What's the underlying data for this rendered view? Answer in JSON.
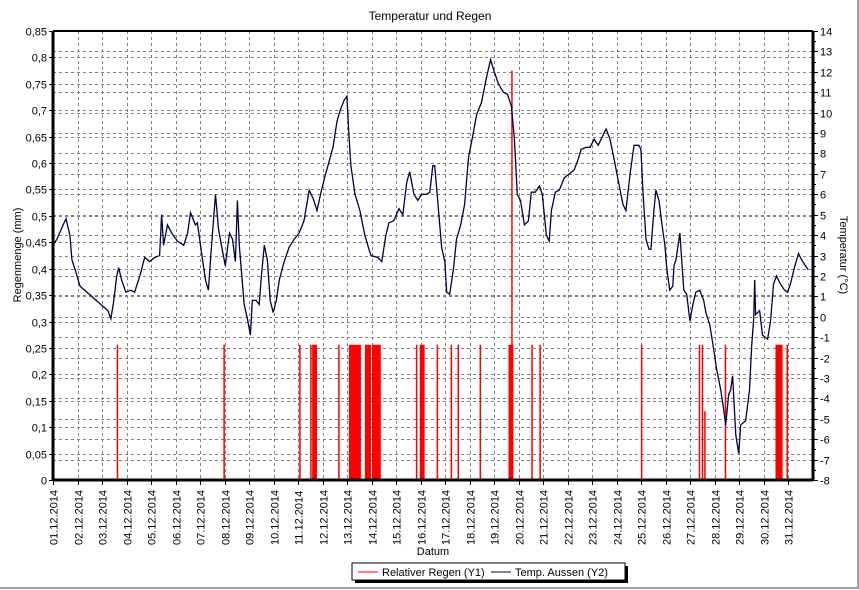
{
  "chart_data": {
    "type": "line",
    "title": "Temperatur und Regen",
    "xlabel": "Datum",
    "ylabel_left": "Regenmenge (mm)",
    "ylabel_right": "Temperatur (°C)",
    "ylim_left": [
      0,
      0.85
    ],
    "ylim_right": [
      -8,
      14
    ],
    "xlim_days": [
      0,
      31
    ],
    "grid": true,
    "legend_position": "bottom-center",
    "x_tick_labels": [
      "01.12.2014",
      "02.12.2014",
      "03.12.2014",
      "04.12.2014",
      "05.12.2014",
      "06.12.2014",
      "07.12.2014",
      "08.12.2014",
      "09.12.2014",
      "10.12.2014",
      "11.12.2014",
      "12.12.2014",
      "13.12.2014",
      "14.12.2014",
      "15.12.2014",
      "16.12.2014",
      "17.12.2014",
      "18.12.2014",
      "19.12.2014",
      "20.12.2014",
      "21.12.2014",
      "22.12.2014",
      "23.12.2014",
      "24.12.2014",
      "25.12.2014",
      "26.12.2014",
      "27.12.2014",
      "28.12.2014",
      "29.12.2014",
      "30.12.2014",
      "31.12.2014"
    ],
    "y_left_tick_labels": [
      "0",
      "0,05",
      "0,1",
      "0,15",
      "0,2",
      "0,25",
      "0,3",
      "0,35",
      "0,4",
      "0,45",
      "0,5",
      "0,55",
      "0,6",
      "0,65",
      "0,7",
      "0,75",
      "0,8",
      "0,85"
    ],
    "y_right_tick_labels": [
      "-8",
      "-7",
      "-6",
      "-5",
      "-4",
      "-3",
      "-2",
      "-1",
      "0",
      "1",
      "2",
      "3",
      "4",
      "5",
      "6",
      "7",
      "8",
      "9",
      "10",
      "11",
      "12",
      "13",
      "14"
    ],
    "series": [
      {
        "name": "Relativer Regen (Y1)",
        "axis": "left",
        "color": "#ff0000",
        "kind": "bars",
        "note_units": "start_day, end_day (days since 01.12.2014 00:00), mm",
        "values": [
          [
            2.6,
            2.63,
            0.256
          ],
          [
            6.95,
            7.0,
            0.256
          ],
          [
            10.04,
            10.07,
            0.256
          ],
          [
            10.49,
            10.52,
            0.256
          ],
          [
            10.57,
            10.77,
            0.256
          ],
          [
            11.63,
            11.66,
            0.256
          ],
          [
            12.07,
            12.56,
            0.256
          ],
          [
            12.72,
            12.97,
            0.256
          ],
          [
            13.01,
            13.37,
            0.256
          ],
          [
            14.8,
            14.84,
            0.256
          ],
          [
            14.96,
            15.16,
            0.256
          ],
          [
            15.65,
            15.68,
            0.256
          ],
          [
            16.22,
            16.25,
            0.256
          ],
          [
            16.5,
            16.53,
            0.256
          ],
          [
            17.4,
            17.43,
            0.256
          ],
          [
            18.58,
            18.78,
            0.256
          ],
          [
            18.69,
            18.72,
            0.775
          ],
          [
            19.51,
            19.54,
            0.256
          ],
          [
            19.84,
            19.87,
            0.256
          ],
          [
            23.98,
            24.02,
            0.256
          ],
          [
            26.34,
            26.37,
            0.256
          ],
          [
            26.46,
            26.5,
            0.256
          ],
          [
            26.56,
            26.59,
            0.13
          ],
          [
            27.4,
            27.43,
            0.256
          ],
          [
            29.47,
            29.76,
            0.256
          ],
          [
            29.92,
            29.95,
            0.256
          ]
        ]
      },
      {
        "name": "Temp. Aussen (Y2)",
        "axis": "right",
        "color": "#000040",
        "kind": "line",
        "note_units": "day (since 01.12.2014 00:00), °C",
        "values": [
          [
            0.0,
            3.5
          ],
          [
            0.16,
            3.8
          ],
          [
            0.41,
            4.5
          ],
          [
            0.53,
            4.8
          ],
          [
            0.69,
            4.0
          ],
          [
            0.77,
            2.8
          ],
          [
            0.93,
            2.2
          ],
          [
            1.1,
            1.5
          ],
          [
            2.24,
            0.3
          ],
          [
            2.36,
            -0.1
          ],
          [
            2.48,
            0.8
          ],
          [
            2.6,
            2.0
          ],
          [
            2.68,
            2.4
          ],
          [
            2.8,
            1.8
          ],
          [
            2.97,
            1.2
          ],
          [
            3.17,
            1.3
          ],
          [
            3.33,
            1.2
          ],
          [
            3.54,
            2.0
          ],
          [
            3.74,
            2.9
          ],
          [
            3.94,
            2.7
          ],
          [
            4.15,
            2.9
          ],
          [
            4.35,
            3.0
          ],
          [
            4.43,
            5.0
          ],
          [
            4.51,
            3.5
          ],
          [
            4.67,
            4.5
          ],
          [
            4.84,
            4.1
          ],
          [
            5.08,
            3.7
          ],
          [
            5.33,
            3.5
          ],
          [
            5.49,
            4.1
          ],
          [
            5.61,
            5.1
          ],
          [
            5.81,
            4.5
          ],
          [
            5.89,
            4.6
          ],
          [
            6.1,
            2.8
          ],
          [
            6.22,
            1.8
          ],
          [
            6.34,
            1.3
          ],
          [
            6.46,
            3.4
          ],
          [
            6.63,
            6.0
          ],
          [
            6.75,
            4.3
          ],
          [
            6.87,
            3.5
          ],
          [
            7.03,
            2.5
          ],
          [
            7.2,
            4.1
          ],
          [
            7.32,
            3.8
          ],
          [
            7.44,
            2.7
          ],
          [
            7.52,
            5.7
          ],
          [
            7.6,
            3.5
          ],
          [
            7.68,
            2.3
          ],
          [
            7.8,
            0.6
          ],
          [
            7.93,
            -0.1
          ],
          [
            8.05,
            -0.9
          ],
          [
            8.13,
            0.8
          ],
          [
            8.29,
            0.8
          ],
          [
            8.41,
            0.6
          ],
          [
            8.5,
            2.0
          ],
          [
            8.62,
            3.5
          ],
          [
            8.74,
            2.8
          ],
          [
            8.86,
            0.8
          ],
          [
            8.98,
            0.2
          ],
          [
            9.11,
            0.8
          ],
          [
            9.23,
            1.8
          ],
          [
            9.43,
            2.7
          ],
          [
            9.63,
            3.4
          ],
          [
            9.84,
            3.8
          ],
          [
            10.04,
            4.1
          ],
          [
            10.24,
            4.7
          ],
          [
            10.45,
            6.2
          ],
          [
            10.61,
            5.8
          ],
          [
            10.77,
            5.2
          ],
          [
            10.93,
            6.1
          ],
          [
            11.1,
            6.9
          ],
          [
            11.26,
            7.6
          ],
          [
            11.42,
            8.3
          ],
          [
            11.59,
            9.6
          ],
          [
            11.71,
            10.1
          ],
          [
            11.87,
            10.6
          ],
          [
            11.99,
            10.8
          ],
          [
            12.07,
            8.9
          ],
          [
            12.15,
            7.4
          ],
          [
            12.32,
            6.0
          ],
          [
            12.52,
            5.2
          ],
          [
            12.72,
            4.0
          ],
          [
            12.89,
            3.3
          ],
          [
            12.97,
            3.0
          ],
          [
            13.25,
            2.9
          ],
          [
            13.41,
            2.7
          ],
          [
            13.58,
            4.0
          ],
          [
            13.7,
            4.6
          ],
          [
            13.9,
            4.7
          ],
          [
            14.11,
            5.3
          ],
          [
            14.27,
            5.0
          ],
          [
            14.43,
            6.6
          ],
          [
            14.55,
            7.1
          ],
          [
            14.72,
            6.0
          ],
          [
            14.88,
            5.7
          ],
          [
            15.04,
            6.0
          ],
          [
            15.24,
            6.0
          ],
          [
            15.37,
            6.1
          ],
          [
            15.49,
            7.4
          ],
          [
            15.57,
            7.4
          ],
          [
            15.69,
            5.7
          ],
          [
            15.85,
            3.4
          ],
          [
            15.98,
            2.7
          ],
          [
            16.06,
            1.2
          ],
          [
            16.18,
            1.1
          ],
          [
            16.34,
            2.4
          ],
          [
            16.46,
            3.8
          ],
          [
            16.63,
            4.5
          ],
          [
            16.79,
            5.5
          ],
          [
            16.95,
            7.8
          ],
          [
            17.11,
            8.8
          ],
          [
            17.28,
            9.9
          ],
          [
            17.48,
            10.5
          ],
          [
            17.68,
            11.7
          ],
          [
            17.85,
            12.6
          ],
          [
            17.97,
            12.1
          ],
          [
            18.17,
            11.4
          ],
          [
            18.37,
            11.0
          ],
          [
            18.54,
            10.9
          ],
          [
            18.7,
            10.3
          ],
          [
            18.82,
            8.7
          ],
          [
            18.94,
            6.0
          ],
          [
            19.07,
            5.7
          ],
          [
            19.23,
            4.5
          ],
          [
            19.39,
            4.7
          ],
          [
            19.51,
            6.1
          ],
          [
            19.67,
            6.1
          ],
          [
            19.84,
            6.4
          ],
          [
            19.96,
            6.0
          ],
          [
            20.12,
            4.0
          ],
          [
            20.24,
            3.7
          ],
          [
            20.33,
            5.2
          ],
          [
            20.49,
            6.1
          ],
          [
            20.65,
            6.2
          ],
          [
            20.85,
            6.8
          ],
          [
            21.06,
            7.0
          ],
          [
            21.26,
            7.2
          ],
          [
            21.42,
            7.7
          ],
          [
            21.54,
            8.2
          ],
          [
            21.75,
            8.3
          ],
          [
            21.91,
            8.3
          ],
          [
            22.07,
            8.7
          ],
          [
            22.24,
            8.4
          ],
          [
            22.44,
            8.9
          ],
          [
            22.56,
            9.2
          ],
          [
            22.72,
            8.7
          ],
          [
            22.89,
            7.7
          ],
          [
            23.05,
            6.7
          ],
          [
            23.25,
            5.5
          ],
          [
            23.37,
            5.2
          ],
          [
            23.54,
            7.0
          ],
          [
            23.7,
            8.4
          ],
          [
            23.9,
            8.4
          ],
          [
            23.98,
            8.2
          ],
          [
            24.07,
            6.0
          ],
          [
            24.19,
            3.8
          ],
          [
            24.31,
            3.3
          ],
          [
            24.39,
            3.3
          ],
          [
            24.51,
            5.2
          ],
          [
            24.59,
            6.2
          ],
          [
            24.72,
            5.7
          ],
          [
            24.84,
            4.5
          ],
          [
            24.96,
            3.5
          ],
          [
            25.04,
            2.3
          ],
          [
            25.16,
            1.3
          ],
          [
            25.28,
            1.5
          ],
          [
            25.33,
            2.5
          ],
          [
            25.41,
            2.8
          ],
          [
            25.57,
            4.1
          ],
          [
            25.65,
            2.7
          ],
          [
            25.73,
            1.3
          ],
          [
            25.85,
            1.1
          ],
          [
            25.98,
            -0.2
          ],
          [
            26.1,
            0.6
          ],
          [
            26.22,
            1.2
          ],
          [
            26.38,
            1.3
          ],
          [
            26.54,
            0.8
          ],
          [
            26.63,
            0.2
          ],
          [
            26.79,
            -0.4
          ],
          [
            26.95,
            -1.6
          ],
          [
            27.07,
            -2.6
          ],
          [
            27.24,
            -3.6
          ],
          [
            27.36,
            -4.6
          ],
          [
            27.44,
            -5.3
          ],
          [
            27.56,
            -3.8
          ],
          [
            27.64,
            -3.6
          ],
          [
            27.72,
            -2.9
          ],
          [
            27.85,
            -5.8
          ],
          [
            27.97,
            -6.7
          ],
          [
            28.05,
            -5.3
          ],
          [
            28.25,
            -5.1
          ],
          [
            28.41,
            -3.6
          ],
          [
            28.5,
            -1.4
          ],
          [
            28.58,
            -0.1
          ],
          [
            28.62,
            1.8
          ],
          [
            28.66,
            0.1
          ],
          [
            28.82,
            0.3
          ],
          [
            28.94,
            -0.9
          ],
          [
            29.15,
            -1.1
          ],
          [
            29.27,
            -0.2
          ],
          [
            29.39,
            1.6
          ],
          [
            29.51,
            2.0
          ],
          [
            29.67,
            1.6
          ],
          [
            29.84,
            1.3
          ],
          [
            29.96,
            1.2
          ],
          [
            30.08,
            1.6
          ],
          [
            30.24,
            2.4
          ],
          [
            30.41,
            3.1
          ],
          [
            30.53,
            2.8
          ],
          [
            30.69,
            2.5
          ],
          [
            30.81,
            2.3
          ]
        ]
      }
    ]
  }
}
